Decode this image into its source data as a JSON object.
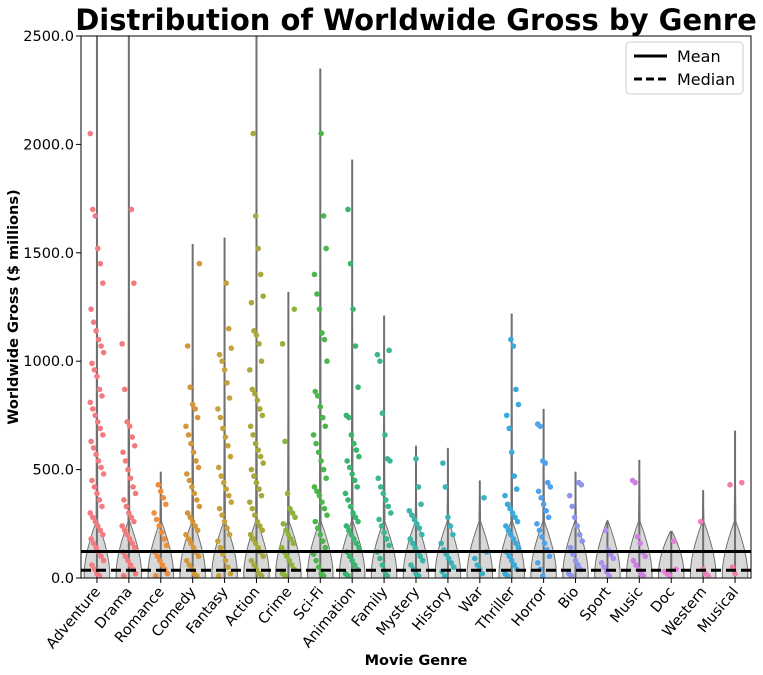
{
  "chart_data": {
    "type": "scatter",
    "title": "Distribution of Worldwide Gross by Genre",
    "xlabel": "Movie Genre",
    "ylabel": "Worldwide Gross ($ millions)",
    "ylim": [
      0,
      2500
    ],
    "yticks": [
      "0.0",
      "500.0",
      "1000.0",
      "1500.0",
      "2000.0",
      "2500.0"
    ],
    "grid": false,
    "legend_position": "top-right",
    "reference_lines": [
      {
        "name": "Mean",
        "value": 122,
        "style": "solid"
      },
      {
        "name": "Median",
        "value": 36,
        "style": "dashed"
      }
    ],
    "categories": [
      "Adventure",
      "Drama",
      "Romance",
      "Comedy",
      "Fantasy",
      "Action",
      "Crime",
      "Sci-Fi",
      "Animation",
      "Family",
      "Mystery",
      "History",
      "War",
      "Thriller",
      "Horror",
      "Bio",
      "Sport",
      "Music",
      "Doc",
      "Western",
      "Musical"
    ],
    "series": [
      {
        "category": "Adventure",
        "color": "#f37b83",
        "violin_max": 2500,
        "points": [
          2050,
          1700,
          1670,
          1520,
          1450,
          1360,
          1240,
          1180,
          1140,
          1100,
          1070,
          1040,
          990,
          960,
          930,
          870,
          840,
          810,
          780,
          750,
          720,
          690,
          660,
          630,
          600,
          570,
          540,
          510,
          480,
          450,
          420,
          390,
          360,
          330,
          300,
          280,
          260,
          240,
          220,
          200,
          180,
          160,
          140,
          120,
          100,
          80,
          60,
          40,
          20,
          10
        ]
      },
      {
        "category": "Drama",
        "color": "#f37b7b",
        "violin_max": 2500,
        "points": [
          1700,
          1360,
          1080,
          870,
          720,
          700,
          650,
          610,
          580,
          540,
          500,
          460,
          420,
          390,
          360,
          330,
          300,
          280,
          260,
          240,
          220,
          200,
          180,
          160,
          140,
          120,
          100,
          80,
          60,
          40,
          20,
          10
        ]
      },
      {
        "category": "Romance",
        "color": "#ee8d3b",
        "violin_max": 490,
        "points": [
          430,
          400,
          370,
          340,
          300,
          270,
          240,
          210,
          180,
          150,
          120,
          100,
          80,
          60,
          40,
          20,
          10
        ]
      },
      {
        "category": "Comedy",
        "color": "#d4963a",
        "violin_max": 1540,
        "points": [
          1450,
          1070,
          880,
          800,
          780,
          740,
          700,
          660,
          620,
          580,
          540,
          510,
          480,
          450,
          420,
          390,
          360,
          330,
          300,
          280,
          260,
          240,
          220,
          200,
          180,
          160,
          140,
          120,
          100,
          80,
          60,
          40,
          20,
          10
        ]
      },
      {
        "category": "Fantasy",
        "color": "#c6a23a",
        "violin_max": 1570,
        "points": [
          1360,
          1150,
          1060,
          1030,
          1000,
          960,
          900,
          830,
          780,
          740,
          690,
          650,
          610,
          560,
          510,
          470,
          440,
          410,
          380,
          350,
          320,
          290,
          260,
          230,
          200,
          170,
          140,
          110,
          80,
          50,
          20,
          10
        ]
      },
      {
        "category": "Action",
        "color": "#a8a93a",
        "violin_max": 2500,
        "points": [
          2050,
          1670,
          1520,
          1400,
          1300,
          1270,
          1140,
          1120,
          1080,
          1000,
          960,
          870,
          850,
          820,
          780,
          750,
          700,
          660,
          620,
          590,
          560,
          530,
          500,
          470,
          440,
          410,
          380,
          350,
          320,
          290,
          260,
          240,
          220,
          200,
          180,
          160,
          140,
          120,
          100,
          80,
          60,
          40,
          20,
          10
        ]
      },
      {
        "category": "Crime",
        "color": "#8db33a",
        "violin_max": 1320,
        "points": [
          1240,
          1080,
          630,
          390,
          320,
          300,
          280,
          250,
          220,
          200,
          180,
          160,
          140,
          120,
          100,
          80,
          60,
          40,
          20,
          10
        ]
      },
      {
        "category": "Sci-Fi",
        "color": "#49b74a",
        "violin_max": 2350,
        "points": [
          2050,
          1670,
          1520,
          1400,
          1310,
          1240,
          1130,
          1100,
          1000,
          860,
          840,
          790,
          740,
          700,
          660,
          620,
          580,
          540,
          500,
          460,
          420,
          400,
          380,
          350,
          320,
          290,
          260,
          230,
          200,
          170,
          140,
          110,
          80,
          50,
          20,
          10
        ]
      },
      {
        "category": "Animation",
        "color": "#3ab56d",
        "violin_max": 1930,
        "points": [
          1700,
          1450,
          1240,
          1070,
          880,
          750,
          740,
          660,
          620,
          590,
          560,
          540,
          510,
          480,
          450,
          420,
          390,
          360,
          330,
          300,
          280,
          260,
          240,
          220,
          200,
          180,
          160,
          140,
          120,
          100,
          80,
          60,
          40,
          20,
          10
        ]
      },
      {
        "category": "Family",
        "color": "#3ab695",
        "violin_max": 1210,
        "points": [
          1050,
          1030,
          1000,
          760,
          660,
          550,
          540,
          460,
          420,
          390,
          360,
          330,
          300,
          270,
          240,
          210,
          180,
          150,
          120,
          90,
          60,
          30,
          10
        ]
      },
      {
        "category": "Mystery",
        "color": "#3ab5a8",
        "violin_max": 610,
        "points": [
          550,
          420,
          340,
          310,
          290,
          270,
          250,
          230,
          200,
          180,
          160,
          140,
          120,
          100,
          80,
          60,
          40,
          20,
          10
        ]
      },
      {
        "category": "History",
        "color": "#3bb4b9",
        "violin_max": 600,
        "points": [
          530,
          420,
          280,
          240,
          200,
          160,
          130,
          110,
          90,
          70,
          50,
          30,
          10
        ]
      },
      {
        "category": "War",
        "color": "#3bb1c9",
        "violin_max": 450,
        "points": [
          370,
          120,
          90,
          60,
          40,
          20
        ]
      },
      {
        "category": "Thriller",
        "color": "#3aaadc",
        "violin_max": 1220,
        "points": [
          1100,
          1070,
          870,
          800,
          750,
          690,
          580,
          470,
          410,
          380,
          340,
          320,
          300,
          280,
          260,
          240,
          220,
          200,
          180,
          160,
          140,
          120,
          100,
          80,
          60,
          40,
          20,
          10
        ]
      },
      {
        "category": "Horror",
        "color": "#4fa3ec",
        "violin_max": 780,
        "points": [
          710,
          700,
          540,
          530,
          440,
          420,
          400,
          370,
          340,
          310,
          280,
          250,
          220,
          190,
          160,
          130,
          100,
          70,
          40,
          10
        ]
      },
      {
        "category": "Bio",
        "color": "#8d95ee",
        "violin_max": 490,
        "points": [
          440,
          430,
          380,
          330,
          280,
          240,
          200,
          170,
          140,
          110,
          80,
          60,
          40,
          20,
          10
        ]
      },
      {
        "category": "Sport",
        "color": "#b28df0",
        "violin_max": 265,
        "points": [
          220,
          130,
          110,
          90,
          70,
          50,
          30,
          10
        ]
      },
      {
        "category": "Music",
        "color": "#cf7fe6",
        "violin_max": 545,
        "points": [
          450,
          440,
          190,
          160,
          120,
          100,
          80,
          60,
          40,
          20,
          10
        ]
      },
      {
        "category": "Doc",
        "color": "#e37fd7",
        "violin_max": 215,
        "points": [
          170,
          40,
          30,
          20,
          10
        ]
      },
      {
        "category": "Western",
        "color": "#f07fbf",
        "violin_max": 405,
        "points": [
          260,
          40,
          20,
          10
        ]
      },
      {
        "category": "Musical",
        "color": "#f27ea4",
        "violin_max": 680,
        "points": [
          440,
          430,
          50,
          20
        ]
      }
    ]
  }
}
